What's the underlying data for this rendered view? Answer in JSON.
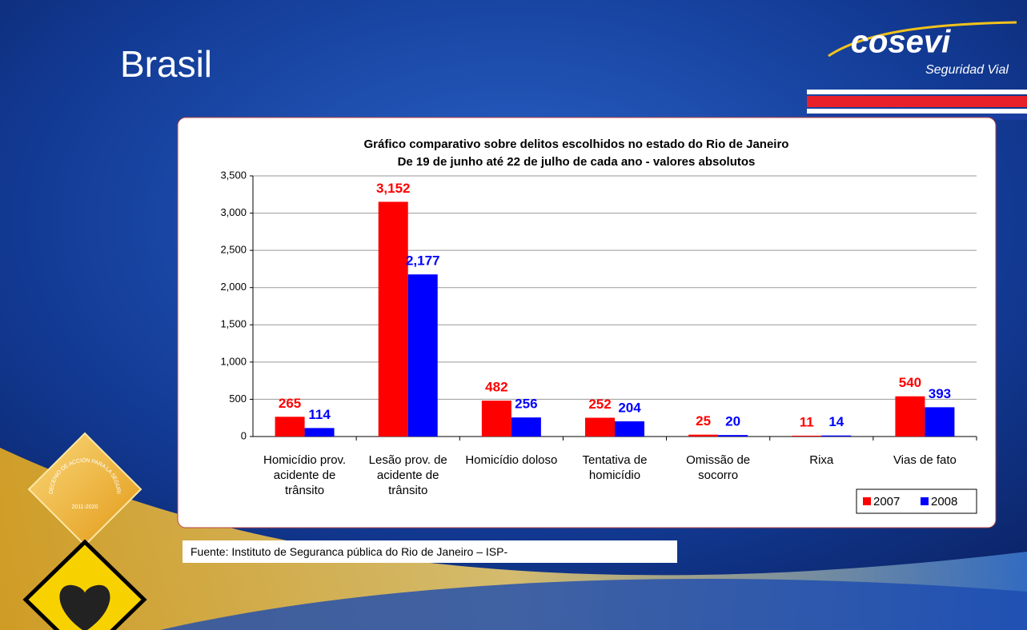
{
  "slide_title": "Brasil",
  "logo": {
    "name": "cosevi",
    "tagline": "Seguridad Vial"
  },
  "badge": {
    "ring": "DECENIO DE ACCIÓN PARA LA SEGURIDAD VIAL",
    "years": "2011-2020"
  },
  "source": "Fuente: Instituto de Seguranca pública do Rio de Janeiro – ISP-",
  "chart_data": {
    "type": "bar",
    "title": "Gráfico comparativo sobre delitos escolhidos no estado do Rio de Janeiro",
    "subtitle": "De 19 de junho até 22 de julho de cada ano - valores absolutos",
    "categories": [
      "Homicídio prov. acidente de trânsito",
      "Lesão prov. de acidente de trânsito",
      "Homicídio doloso",
      "Tentativa de homicídio",
      "Omissão de socorro",
      "Rixa",
      "Vias de fato"
    ],
    "series": [
      {
        "name": "2007",
        "color": "#ff0000",
        "values": [
          265,
          3152,
          482,
          252,
          25,
          11,
          540
        ],
        "value_labels": [
          "265",
          "3,152",
          "482",
          "252",
          "25",
          "11",
          "540"
        ]
      },
      {
        "name": "2008",
        "color": "#0000ff",
        "values": [
          114,
          2177,
          256,
          204,
          20,
          14,
          393
        ],
        "value_labels": [
          "114",
          "2,177",
          "256",
          "204",
          "20",
          "14",
          "393"
        ]
      }
    ],
    "ylim": [
      0,
      3500
    ],
    "yticks": [
      0,
      500,
      {
        "value": 1000,
        "label": "1,000"
      },
      {
        "value": 1500,
        "label": "1,500"
      },
      {
        "value": 2000,
        "label": "2,000"
      },
      {
        "value": 2500,
        "label": "2,500"
      },
      {
        "value": 3000,
        "label": "3,000"
      },
      {
        "value": 3500,
        "label": "3,500"
      }
    ],
    "grid": true,
    "legend": "bottom-right"
  }
}
